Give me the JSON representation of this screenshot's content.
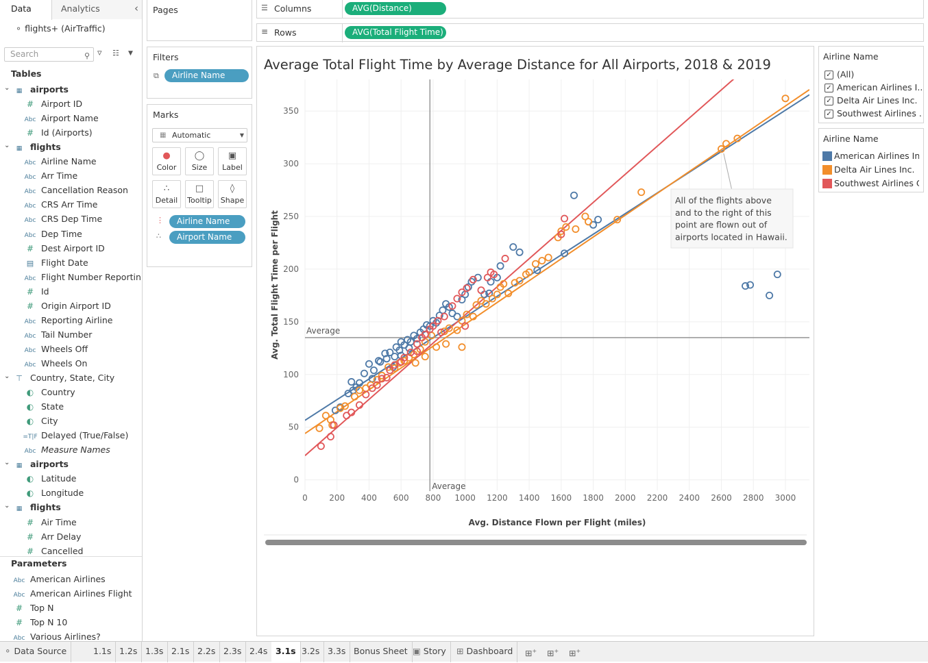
{
  "left_panel": {
    "tab_data": "Data",
    "tab_analytics": "Analytics",
    "datasource": "flights+ (AirTraffic)",
    "search_placeholder": "Search",
    "tables_header": "Tables",
    "items": [
      {
        "label": "airports",
        "type": "table",
        "bold": true
      },
      {
        "label": "Airport ID",
        "type": "#"
      },
      {
        "label": "Airport Name",
        "type": "Abc"
      },
      {
        "label": "Id (Airports)",
        "type": "#"
      },
      {
        "label": "flights",
        "type": "table",
        "bold": true
      },
      {
        "label": "Airline Name",
        "type": "Abc"
      },
      {
        "label": "Arr Time",
        "type": "Abc"
      },
      {
        "label": "Cancellation Reason",
        "type": "Abc"
      },
      {
        "label": "CRS Arr Time",
        "type": "Abc"
      },
      {
        "label": "CRS Dep Time",
        "type": "Abc"
      },
      {
        "label": "Dep Time",
        "type": "Abc"
      },
      {
        "label": "Dest Airport ID",
        "type": "#"
      },
      {
        "label": "Flight Date",
        "type": "date"
      },
      {
        "label": "Flight Number Reportin...",
        "type": "Abc"
      },
      {
        "label": "Id",
        "type": "#"
      },
      {
        "label": "Origin Airport ID",
        "type": "#"
      },
      {
        "label": "Reporting Airline",
        "type": "Abc"
      },
      {
        "label": "Tail Number",
        "type": "Abc"
      },
      {
        "label": "Wheels Off",
        "type": "Abc"
      },
      {
        "label": "Wheels On",
        "type": "Abc"
      },
      {
        "label": "Country, State, City",
        "type": "hier"
      },
      {
        "label": "Country",
        "type": "geo"
      },
      {
        "label": "State",
        "type": "geo"
      },
      {
        "label": "City",
        "type": "geo"
      },
      {
        "label": "Delayed (True/False)",
        "type": "bool"
      },
      {
        "label": "Measure Names",
        "type": "Abc"
      },
      {
        "label": "airports",
        "type": "table",
        "bold": true
      },
      {
        "label": "Latitude",
        "type": "geo"
      },
      {
        "label": "Longitude",
        "type": "geo"
      },
      {
        "label": "flights",
        "type": "table",
        "bold": true
      },
      {
        "label": "Air Time",
        "type": "#"
      },
      {
        "label": "Arr Delay",
        "type": "#"
      },
      {
        "label": "Cancelled",
        "type": "#"
      }
    ],
    "parameters_header": "Parameters",
    "parameters": [
      {
        "label": "American Airlines",
        "type": "Abc"
      },
      {
        "label": "American Airlines Flight",
        "type": "Abc"
      },
      {
        "label": "Top N",
        "type": "#"
      },
      {
        "label": "Top N 10",
        "type": "#"
      },
      {
        "label": "Various Airlines?",
        "type": "Abc"
      }
    ]
  },
  "shelves": {
    "pages_label": "Pages",
    "filters_label": "Filters",
    "filter_pill": "Airline Name",
    "marks_label": "Marks",
    "marks_type": "Automatic",
    "mark_buttons": [
      "Color",
      "Size",
      "Label",
      "Detail",
      "Tooltip",
      "Shape"
    ],
    "marks_pill_color": "Airline Name",
    "marks_pill_detail": "Airport Name",
    "columns_label": "Columns",
    "columns_pill": "AVG(Distance)",
    "rows_label": "Rows",
    "rows_pill": "AVG(Total Flight Time)"
  },
  "legend_filter": {
    "title": "Airline Name",
    "items": [
      "(All)",
      "American Airlines I...",
      "Delta Air Lines Inc.",
      "Southwest Airlines ..."
    ]
  },
  "legend_color": {
    "title": "Airline Name",
    "items": [
      {
        "label": "American Airlines Inc.",
        "color": "#4e79a7"
      },
      {
        "label": "Delta Air Lines Inc.",
        "color": "#f28e2b"
      },
      {
        "label": "Southwest Airlines C..",
        "color": "#e15759"
      }
    ]
  },
  "bottom_tabs": [
    "Data Source",
    "1.1s",
    "1.2s",
    "1.3s",
    "2.1s",
    "2.2s",
    "2.3s",
    "2.4s",
    "3.1s",
    "3.2s",
    "3.3s",
    "Bonus Sheet",
    "Story",
    "Dashboard"
  ],
  "chart_data": {
    "type": "scatter",
    "title": "Average Total Flight Time by Average Distance for All Airports, 2018 & 2019",
    "xlabel": "Avg. Distance Flown per Flight (miles)",
    "ylabel": "Avg. Total Flight Time per Flight",
    "xlim": [
      0,
      3150
    ],
    "ylim": [
      -10,
      380
    ],
    "x_ticks": [
      0,
      200,
      400,
      600,
      800,
      1000,
      1200,
      1400,
      1600,
      1800,
      2000,
      2200,
      2400,
      2600,
      2800,
      3000
    ],
    "y_ticks": [
      0,
      50,
      100,
      150,
      200,
      250,
      300,
      350
    ],
    "reference_lines": {
      "x_average": 780,
      "y_average": 135,
      "label": "Average"
    },
    "annotation": "All of the flights above and to the right of this point are flown out of airports located in Hawaii.",
    "trend_lines": [
      {
        "series": "American Airlines Inc.",
        "color": "#4e79a7",
        "slope": 0.0981,
        "intercept": 56.5
      },
      {
        "series": "Delta Air Lines Inc.",
        "color": "#f28e2b",
        "slope": 0.1036,
        "intercept": 44
      },
      {
        "series": "Southwest Airlines C..",
        "color": "#e15759",
        "slope": 0.1335,
        "intercept": 23
      }
    ],
    "series": [
      {
        "name": "American Airlines Inc.",
        "color": "#4e79a7",
        "points": [
          [
            190,
            66
          ],
          [
            220,
            69
          ],
          [
            270,
            82
          ],
          [
            290,
            93
          ],
          [
            300,
            85
          ],
          [
            320,
            88
          ],
          [
            340,
            92
          ],
          [
            370,
            101
          ],
          [
            400,
            110
          ],
          [
            420,
            96
          ],
          [
            430,
            104
          ],
          [
            460,
            113
          ],
          [
            470,
            112
          ],
          [
            500,
            120
          ],
          [
            510,
            115
          ],
          [
            530,
            121
          ],
          [
            560,
            117
          ],
          [
            570,
            126
          ],
          [
            590,
            123
          ],
          [
            600,
            131
          ],
          [
            620,
            128
          ],
          [
            640,
            133
          ],
          [
            660,
            131
          ],
          [
            680,
            137
          ],
          [
            700,
            134
          ],
          [
            720,
            140
          ],
          [
            740,
            143
          ],
          [
            760,
            147
          ],
          [
            780,
            146
          ],
          [
            800,
            151
          ],
          [
            820,
            149
          ],
          [
            840,
            156
          ],
          [
            860,
            161
          ],
          [
            880,
            167
          ],
          [
            900,
            164
          ],
          [
            920,
            158
          ],
          [
            950,
            155
          ],
          [
            980,
            171
          ],
          [
            1000,
            176
          ],
          [
            1020,
            183
          ],
          [
            1040,
            188
          ],
          [
            1080,
            192
          ],
          [
            1120,
            176
          ],
          [
            1150,
            177
          ],
          [
            1160,
            188
          ],
          [
            1200,
            192
          ],
          [
            1220,
            203
          ],
          [
            1300,
            221
          ],
          [
            1340,
            216
          ],
          [
            1450,
            199
          ],
          [
            1620,
            215
          ],
          [
            1680,
            270
          ],
          [
            1800,
            242
          ],
          [
            1830,
            247
          ],
          [
            2750,
            184
          ],
          [
            2780,
            185
          ],
          [
            2900,
            175
          ],
          [
            2950,
            195
          ],
          [
            550,
            107
          ],
          [
            650,
            125
          ],
          [
            600,
            118
          ]
        ]
      },
      {
        "name": "Delta Air Lines Inc.",
        "color": "#f28e2b",
        "points": [
          [
            90,
            49
          ],
          [
            130,
            61
          ],
          [
            160,
            57
          ],
          [
            170,
            52
          ],
          [
            220,
            68
          ],
          [
            250,
            70
          ],
          [
            310,
            79
          ],
          [
            340,
            85
          ],
          [
            380,
            87
          ],
          [
            410,
            90
          ],
          [
            450,
            95
          ],
          [
            480,
            99
          ],
          [
            520,
            107
          ],
          [
            560,
            106
          ],
          [
            590,
            111
          ],
          [
            620,
            113
          ],
          [
            650,
            116
          ],
          [
            680,
            119
          ],
          [
            720,
            124
          ],
          [
            750,
            131
          ],
          [
            790,
            137
          ],
          [
            820,
            126
          ],
          [
            870,
            141
          ],
          [
            880,
            129
          ],
          [
            900,
            144
          ],
          [
            950,
            142
          ],
          [
            980,
            151
          ],
          [
            1010,
            157
          ],
          [
            1050,
            155
          ],
          [
            1070,
            166
          ],
          [
            1100,
            170
          ],
          [
            1130,
            167
          ],
          [
            1170,
            172
          ],
          [
            1200,
            176
          ],
          [
            1220,
            183
          ],
          [
            1240,
            186
          ],
          [
            1270,
            177
          ],
          [
            1310,
            187
          ],
          [
            1340,
            189
          ],
          [
            1380,
            195
          ],
          [
            1400,
            197
          ],
          [
            1440,
            205
          ],
          [
            1480,
            208
          ],
          [
            1520,
            211
          ],
          [
            1580,
            230
          ],
          [
            1600,
            236
          ],
          [
            1630,
            240
          ],
          [
            1690,
            238
          ],
          [
            1750,
            250
          ],
          [
            1770,
            245
          ],
          [
            1950,
            247
          ],
          [
            2100,
            273
          ],
          [
            2600,
            314
          ],
          [
            2630,
            319
          ],
          [
            2700,
            324
          ],
          [
            3000,
            362
          ],
          [
            750,
            117
          ],
          [
            690,
            111
          ],
          [
            980,
            126
          ]
        ]
      },
      {
        "name": "Southwest Airlines C..",
        "color": "#e15759",
        "points": [
          [
            100,
            32
          ],
          [
            160,
            41
          ],
          [
            180,
            52
          ],
          [
            260,
            61
          ],
          [
            290,
            64
          ],
          [
            340,
            71
          ],
          [
            380,
            81
          ],
          [
            420,
            87
          ],
          [
            450,
            90
          ],
          [
            480,
            96
          ],
          [
            510,
            97
          ],
          [
            530,
            104
          ],
          [
            560,
            109
          ],
          [
            600,
            112
          ],
          [
            620,
            116
          ],
          [
            660,
            121
          ],
          [
            700,
            129
          ],
          [
            730,
            135
          ],
          [
            750,
            138
          ],
          [
            780,
            143
          ],
          [
            800,
            146
          ],
          [
            830,
            151
          ],
          [
            870,
            155
          ],
          [
            920,
            165
          ],
          [
            950,
            172
          ],
          [
            980,
            178
          ],
          [
            1010,
            182
          ],
          [
            1050,
            190
          ],
          [
            1100,
            180
          ],
          [
            1140,
            192
          ],
          [
            1160,
            197
          ],
          [
            1180,
            195
          ],
          [
            1250,
            210
          ],
          [
            1600,
            233
          ],
          [
            1620,
            248
          ],
          [
            1000,
            146
          ],
          [
            850,
            140
          ],
          [
            700,
            122
          ]
        ]
      }
    ]
  }
}
